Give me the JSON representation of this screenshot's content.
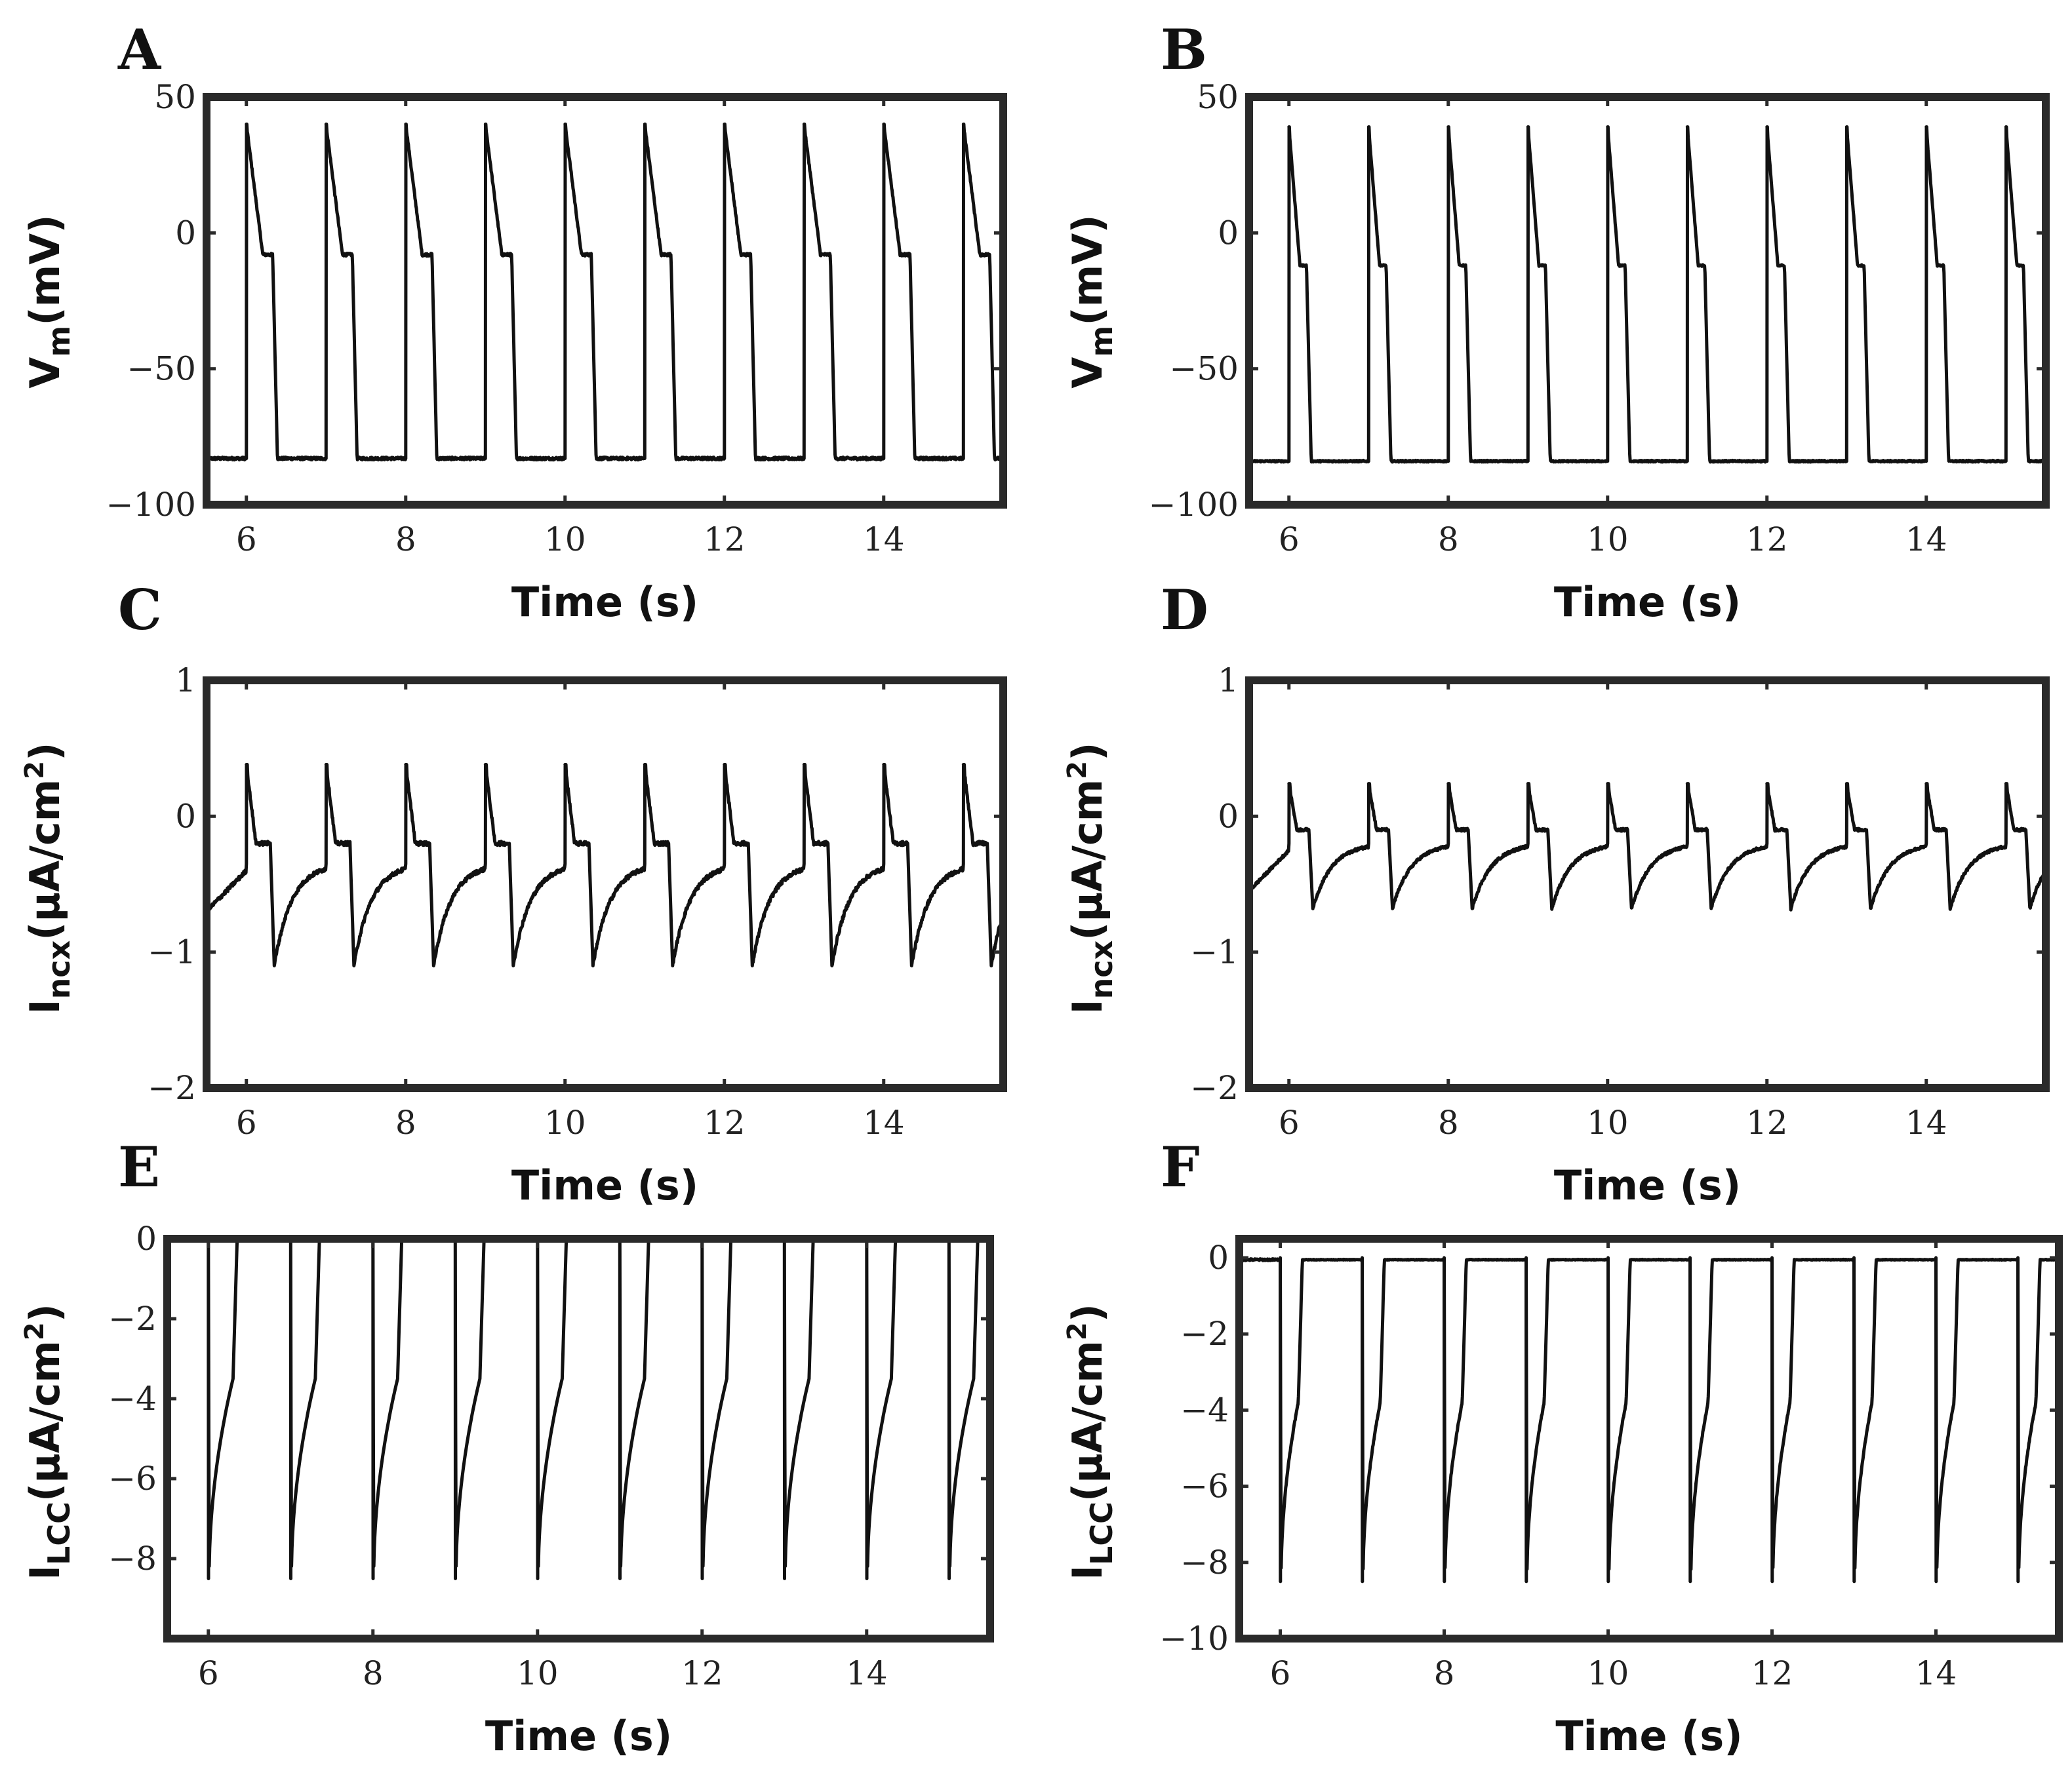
{
  "chart_data": [
    {
      "panel": "A",
      "type": "line",
      "xlabel": "Time (s)",
      "ylabel": {
        "main": "V",
        "sub": "m",
        "unit": "(mV)"
      },
      "xlim": [
        5.5,
        15.5
      ],
      "ylim": [
        -100,
        50
      ],
      "xticks": [
        6,
        8,
        10,
        12,
        14
      ],
      "yticks": [
        50,
        0,
        -50,
        -100
      ],
      "ytick_labels": [
        "50",
        "0",
        "−50",
        "−100"
      ],
      "waveform": "vm",
      "spike_times": [
        6.0,
        7.0,
        8.0,
        9.0,
        10.0,
        11.0,
        12.0,
        13.0,
        14.0,
        15.0
      ],
      "rest": -83,
      "peak": 40,
      "plateau": -8,
      "trough": -83,
      "duration": 0.33,
      "jitter": 1.0
    },
    {
      "panel": "B",
      "type": "line",
      "xlabel": "Time (s)",
      "ylabel": {
        "main": "V",
        "sub": "m",
        "unit": "(mV)"
      },
      "xlim": [
        5.5,
        15.5
      ],
      "ylim": [
        -100,
        50
      ],
      "xticks": [
        6,
        8,
        10,
        12,
        14
      ],
      "yticks": [
        50,
        0,
        -50,
        -100
      ],
      "ytick_labels": [
        "50",
        "0",
        "−50",
        "−100"
      ],
      "waveform": "vm",
      "spike_times": [
        6.0,
        7.0,
        8.0,
        9.0,
        10.0,
        11.0,
        12.0,
        13.0,
        14.0,
        15.0
      ],
      "rest": -84,
      "peak": 39,
      "plateau": -12,
      "trough": -84,
      "duration": 0.22,
      "jitter": 0.6
    },
    {
      "panel": "C",
      "type": "line",
      "xlabel": "Time (s)",
      "ylabel": {
        "main": "I",
        "sub": "ncx",
        "unit": "(μA/cm",
        "sup": "2",
        "close": ")"
      },
      "xlim": [
        5.5,
        15.5
      ],
      "ylim": [
        -2,
        1
      ],
      "xticks": [
        6,
        8,
        10,
        12,
        14
      ],
      "yticks": [
        1,
        0,
        -1,
        -2
      ],
      "ytick_labels": [
        "1",
        "0",
        "−1",
        "−2"
      ],
      "waveform": "ncx",
      "spike_times": [
        6.0,
        7.0,
        8.0,
        9.0,
        10.0,
        11.0,
        12.0,
        13.0,
        14.0,
        15.0
      ],
      "rest": -0.35,
      "peak": 0.38,
      "plateau": -0.2,
      "trough": -1.1,
      "duration": 0.3,
      "jitter": 0.03
    },
    {
      "panel": "D",
      "type": "line",
      "xlabel": "Time (s)",
      "ylabel": {
        "main": "I",
        "sub": "ncx",
        "unit": "(μA/cm",
        "sup": "2",
        "close": ")"
      },
      "xlim": [
        5.5,
        15.5
      ],
      "ylim": [
        -2,
        1
      ],
      "xticks": [
        6,
        8,
        10,
        12,
        14
      ],
      "yticks": [
        1,
        0,
        -1,
        -2
      ],
      "ytick_labels": [
        "1",
        "0",
        "−1",
        "−2"
      ],
      "waveform": "ncx",
      "spike_times": [
        6.0,
        7.0,
        8.0,
        9.0,
        10.0,
        11.0,
        12.0,
        13.0,
        14.0,
        15.0
      ],
      "rest": -0.2,
      "peak": 0.24,
      "plateau": -0.1,
      "trough": -0.68,
      "duration": 0.25,
      "jitter": 0.02
    },
    {
      "panel": "E",
      "type": "line",
      "xlabel": "Time (s)",
      "ylabel": {
        "main": "I",
        "sub": "LCC",
        "unit": "(μA/cm",
        "sup": "2",
        "close": ")"
      },
      "xlim": [
        5.5,
        15.5
      ],
      "ylim": [
        -10,
        0
      ],
      "xticks": [
        6,
        8,
        10,
        12,
        14
      ],
      "yticks": [
        0,
        -2,
        -4,
        -6,
        -8
      ],
      "ytick_labels": [
        "0",
        "−2",
        "−4",
        "−6",
        "−8"
      ],
      "waveform": "lcc",
      "spike_times": [
        6.0,
        7.0,
        8.0,
        9.0,
        10.0,
        11.0,
        12.0,
        13.0,
        14.0,
        15.0
      ],
      "rest": 0,
      "peak": -8.5,
      "plateau": -3.5,
      "trough": 0,
      "duration": 0.3,
      "jitter": 0.0
    },
    {
      "panel": "F",
      "type": "line",
      "xlabel": "Time (s)",
      "ylabel": {
        "main": "I",
        "sub": "LCC",
        "unit": "(μA/cm",
        "sup": "2",
        "close": ")"
      },
      "xlim": [
        5.5,
        15.5
      ],
      "ylim": [
        -10,
        0.5
      ],
      "xticks": [
        6,
        8,
        10,
        12,
        14
      ],
      "yticks": [
        0,
        -2,
        -4,
        -6,
        -8,
        -10
      ],
      "ytick_labels": [
        "0",
        "−2",
        "−4",
        "−6",
        "−8",
        "−10"
      ],
      "waveform": "lcc",
      "spike_times": [
        6.0,
        7.0,
        8.0,
        9.0,
        10.0,
        11.0,
        12.0,
        13.0,
        14.0,
        15.0
      ],
      "rest": -0.05,
      "peak": -8.5,
      "plateau": -3.8,
      "trough": -0.05,
      "duration": 0.22,
      "jitter": 0.05
    }
  ]
}
